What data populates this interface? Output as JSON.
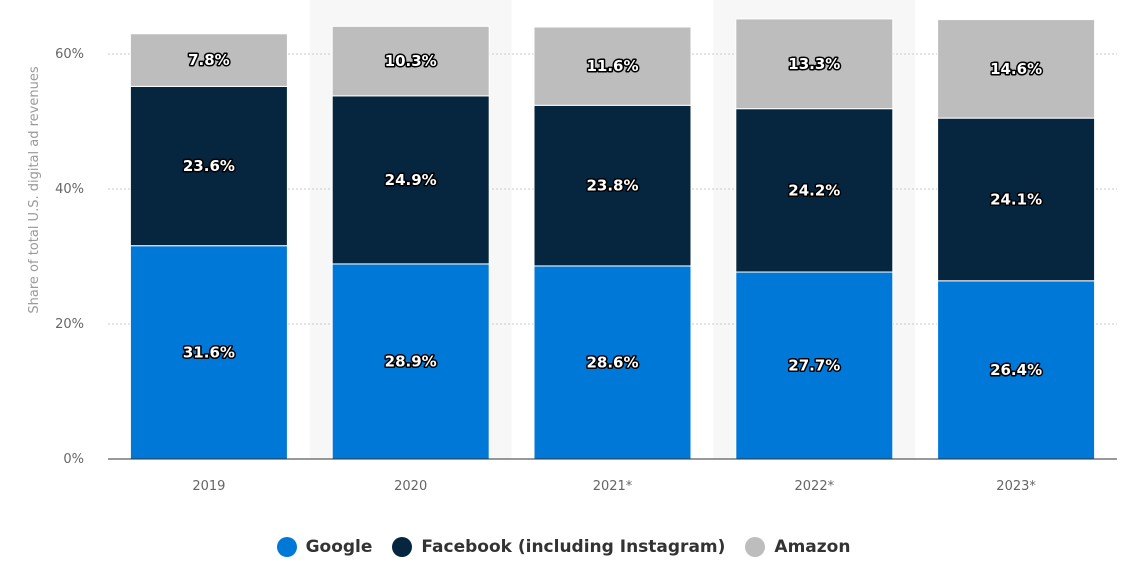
{
  "chart_data": {
    "type": "bar",
    "stacked": true,
    "categories": [
      "2019",
      "2020",
      "2021*",
      "2022*",
      "2023*"
    ],
    "series": [
      {
        "name": "Google",
        "values": [
          31.6,
          28.9,
          28.6,
          27.7,
          26.4
        ],
        "color": "#0078d7"
      },
      {
        "name": "Facebook (including Instagram)",
        "values": [
          23.6,
          24.9,
          23.8,
          24.2,
          24.1
        ],
        "color": "#05263e"
      },
      {
        "name": "Amazon",
        "values": [
          7.8,
          10.3,
          11.6,
          13.3,
          14.6
        ],
        "color": "#bdbdbd"
      }
    ],
    "data_labels": [
      [
        "31.6%",
        "28.9%",
        "28.6%",
        "27.7%",
        "26.4%"
      ],
      [
        "23.6%",
        "24.9%",
        "23.8%",
        "24.2%",
        "24.1%"
      ],
      [
        "7.8%",
        "10.3%",
        "11.6%",
        "13.3%",
        "14.6%"
      ]
    ],
    "ylabel": "Share of total U.S. digital ad revenues",
    "y_ticks": [
      0,
      20,
      40,
      60
    ],
    "y_tick_labels": [
      "0%",
      "20%",
      "40%",
      "60%"
    ],
    "ylim": [
      0,
      60
    ],
    "grid": true,
    "legend_position": "bottom"
  }
}
